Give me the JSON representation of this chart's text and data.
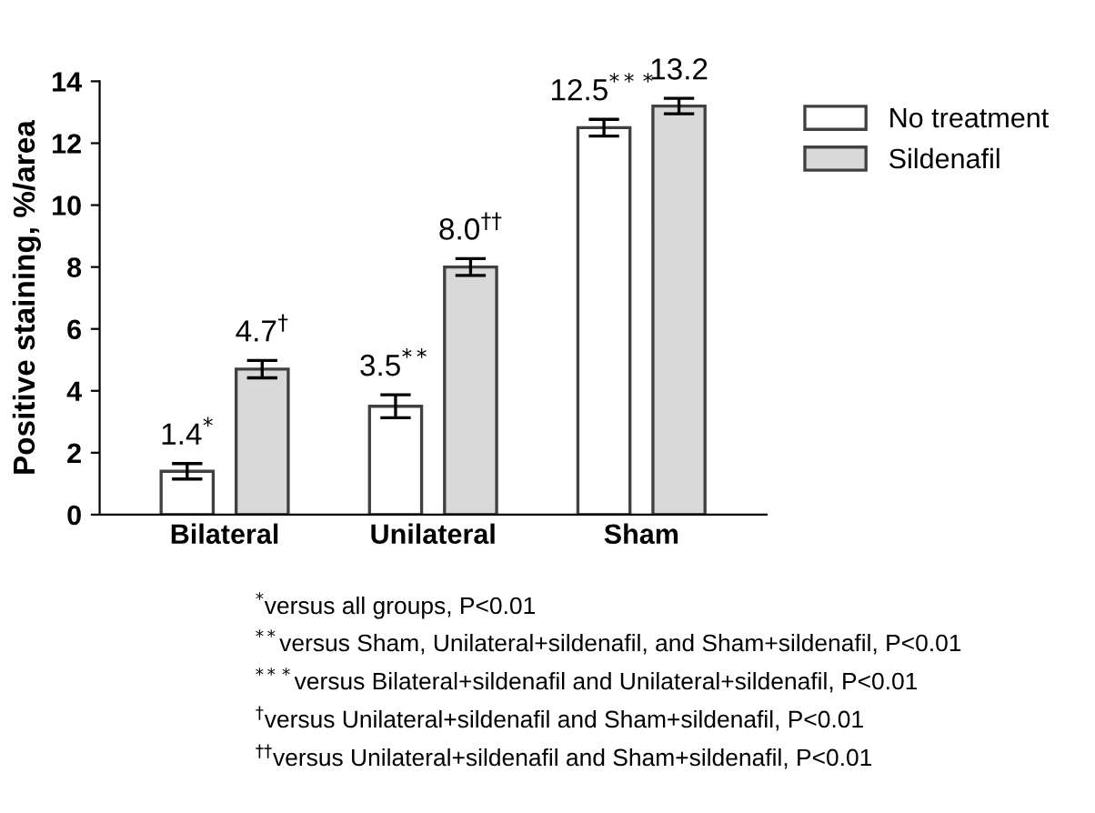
{
  "chart_data": {
    "type": "bar",
    "ylabel": "Positive staining, %/area",
    "categories": [
      "Bilateral",
      "Unilateral",
      "Sham"
    ],
    "series": [
      {
        "name": "No treatment",
        "color": "#ffffff",
        "values": [
          1.4,
          3.5,
          12.5
        ],
        "errors": [
          0.25,
          0.37,
          0.27
        ],
        "value_labels": [
          "1.4$^{*}$",
          "3.5$^{**}$",
          "12.5$^{***}$"
        ]
      },
      {
        "name": "Sildenafil",
        "color": "#d9d9d9",
        "values": [
          4.7,
          8.0,
          13.2
        ],
        "errors": [
          0.28,
          0.27,
          0.25
        ],
        "value_labels": [
          "4.7$^{†}$",
          "8.0$^{††}$",
          "13.2"
        ]
      }
    ],
    "ylim": [
      0,
      14
    ],
    "yticks": [
      0,
      2,
      4,
      6,
      8,
      10,
      12,
      14
    ],
    "grid": false,
    "legend": "right",
    "annotations": [
      "$^{*}$versus all groups, P<0.01",
      "$^{**}$versus Sham, Unilateral+sildenafil, and Sham+sildenafil, P<0.01",
      "$^{***}$versus Bilateral+sildenafil and Unilateral+sildenafil, P<0.01",
      "$^{†}$versus Unilateral+sildenafil and Sham+sildenafil, P<0.01",
      "$^{††}$versus Unilateral+sildenafil and Sham+sildenafil, P<0.01"
    ]
  }
}
